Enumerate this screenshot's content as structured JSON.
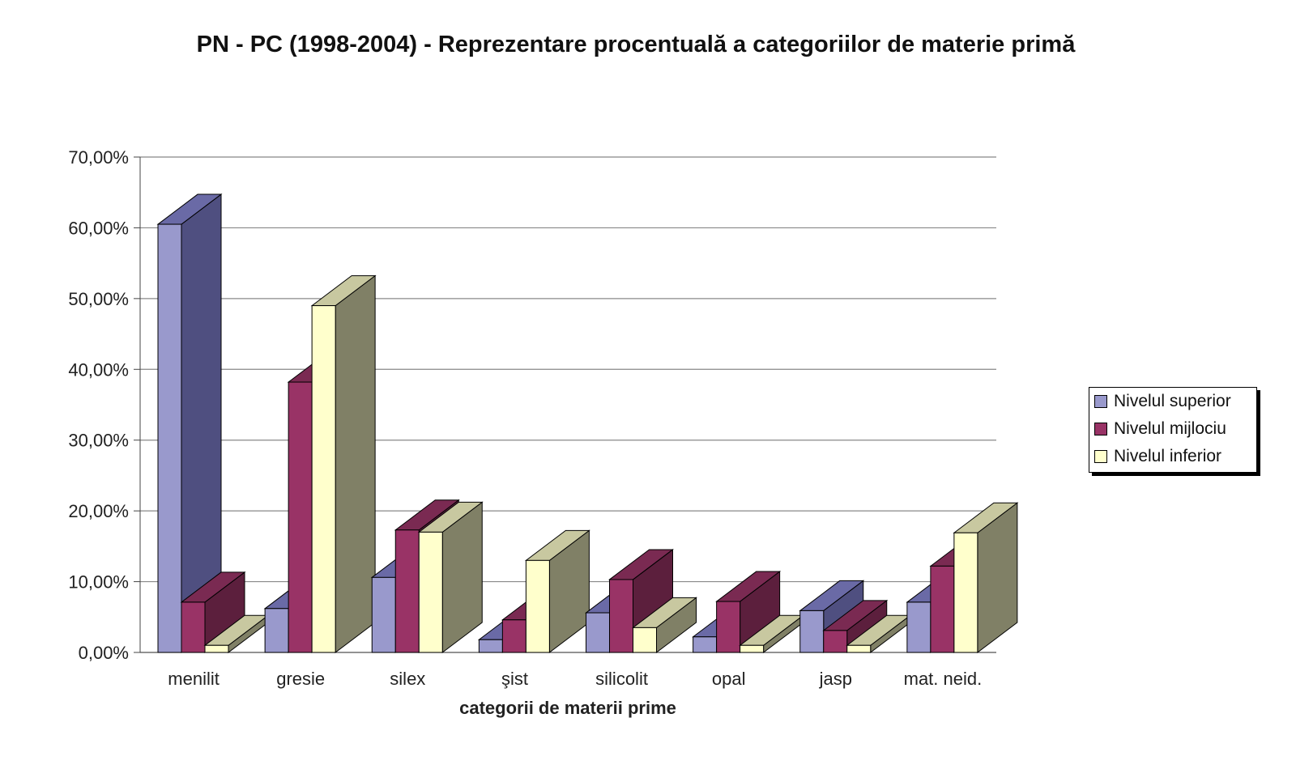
{
  "chart_data": {
    "type": "bar",
    "title": "PN - PC (1998-2004) -  Reprezentare procentuală a categoriilor de materie primă",
    "xlabel": "categorii de materii prime",
    "ylabel": "",
    "ylim": [
      0,
      70
    ],
    "yticks": [
      "0,00%",
      "10,00%",
      "20,00%",
      "30,00%",
      "40,00%",
      "50,00%",
      "60,00%",
      "70,00%"
    ],
    "grid": true,
    "legend_position": "right",
    "categories": [
      "menilit",
      "gresie",
      "silex",
      "şist",
      "silicolit",
      "opal",
      "jasp",
      "mat. neid."
    ],
    "series": [
      {
        "name": "Nivelul superior",
        "color": "#9999cc",
        "values": [
          60.5,
          6.2,
          10.6,
          1.8,
          5.6,
          2.2,
          5.9,
          7.1
        ]
      },
      {
        "name": "Nivelul mijlociu",
        "color": "#993366",
        "values": [
          7.1,
          38.2,
          17.3,
          4.6,
          10.3,
          7.2,
          3.1,
          12.2
        ]
      },
      {
        "name": "Nivelul inferior",
        "color": "#ffffcc",
        "values": [
          1.0,
          49.0,
          17.0,
          13.0,
          3.5,
          1.0,
          1.0,
          16.9
        ]
      }
    ]
  }
}
